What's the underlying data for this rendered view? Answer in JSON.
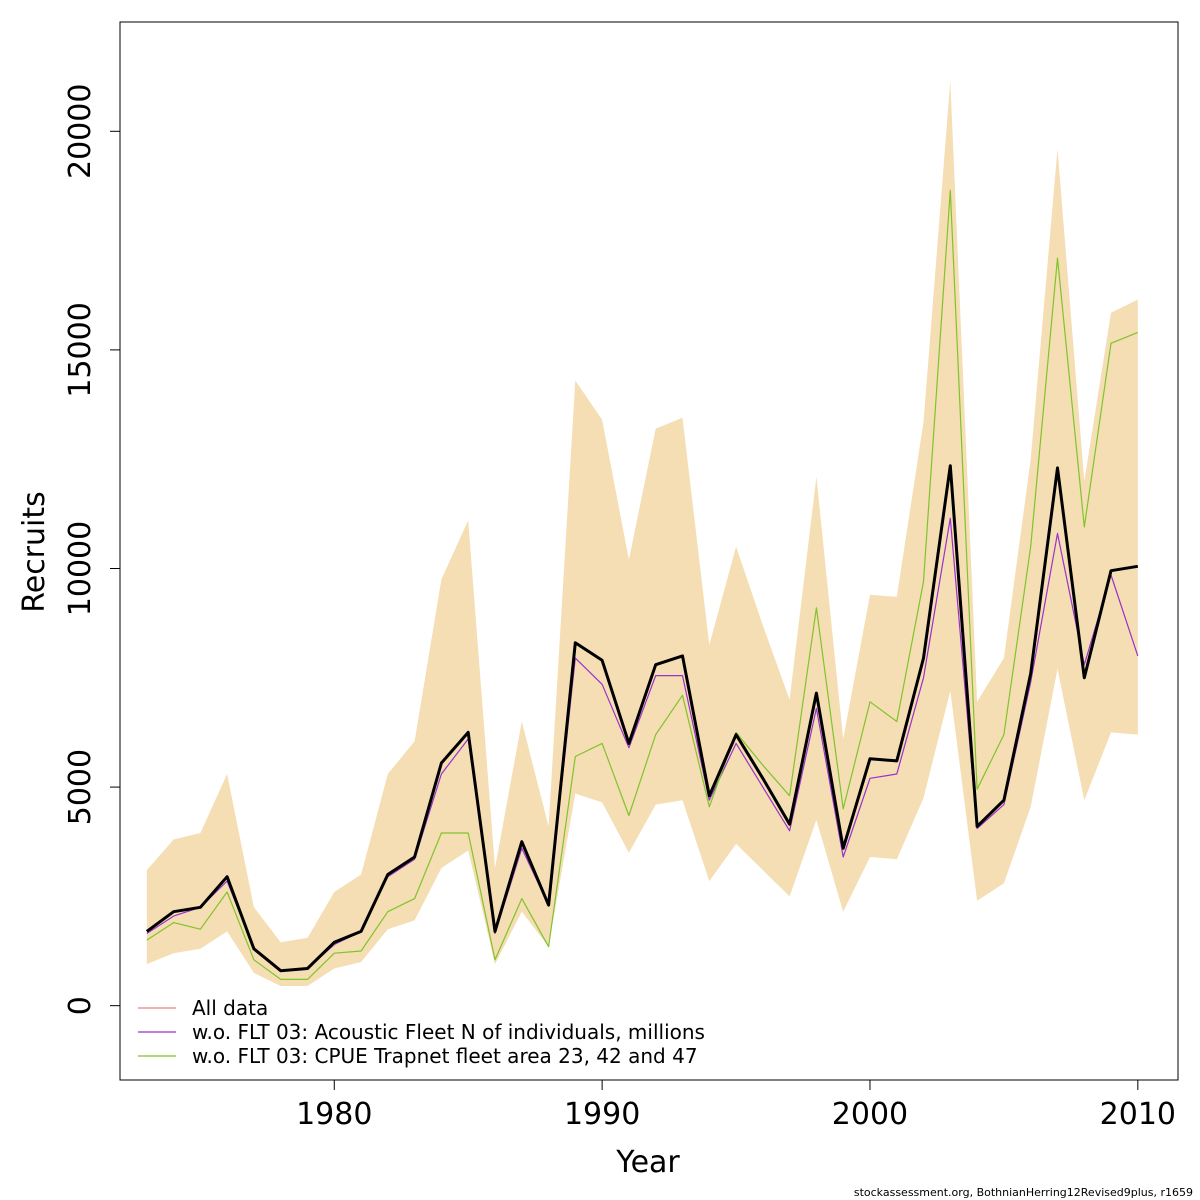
{
  "chart_data": {
    "type": "line",
    "xlabel": "Year",
    "ylabel": "Recruits",
    "xlim": [
      1972,
      2011.5
    ],
    "ylim": [
      -1700,
      22500
    ],
    "x_ticks": [
      1980,
      1990,
      2000,
      2010
    ],
    "y_ticks": [
      0,
      5000,
      10000,
      15000,
      20000
    ],
    "grid": false,
    "legend_position": "bottom-left",
    "x": [
      1973,
      1974,
      1975,
      1976,
      1977,
      1978,
      1979,
      1980,
      1981,
      1982,
      1983,
      1984,
      1985,
      1986,
      1987,
      1988,
      1989,
      1990,
      1991,
      1992,
      1993,
      1994,
      1995,
      1996,
      1997,
      1998,
      1999,
      2000,
      2001,
      2002,
      2003,
      2004,
      2005,
      2006,
      2007,
      2008,
      2009,
      2010
    ],
    "band": {
      "color": "#F5DEB3",
      "upper": [
        3100,
        3800,
        3950,
        5300,
        2250,
        1450,
        1550,
        2600,
        3000,
        5300,
        6050,
        9750,
        11100,
        3150,
        6500,
        4100,
        14300,
        13400,
        10200,
        13200,
        13450,
        8250,
        10500,
        8700,
        7000,
        12100,
        6100,
        9400,
        9350,
        13350,
        21150,
        6950,
        7950,
        12500,
        19600,
        12000,
        15850,
        16150
      ],
      "lower": [
        950,
        1200,
        1300,
        1700,
        750,
        450,
        450,
        850,
        1000,
        1750,
        1950,
        3150,
        3550,
        950,
        2150,
        1350,
        4850,
        4650,
        3500,
        4600,
        4700,
        2850,
        3700,
        3100,
        2500,
        4250,
        2150,
        3400,
        3350,
        4750,
        7200,
        2400,
        2800,
        4550,
        7700,
        4700,
        6250,
        6200
      ]
    },
    "series": [
      {
        "name": "All data",
        "color": "#E8837C",
        "width": 1.2,
        "legend": true,
        "values": [
          1700,
          2150,
          2250,
          2950,
          1300,
          800,
          850,
          1450,
          1700,
          3000,
          3400,
          5550,
          6250,
          1700,
          3750,
          2300,
          8300,
          7900,
          6000,
          7800,
          8000,
          4800,
          6200,
          5200,
          4150,
          7150,
          3600,
          5650,
          5600,
          7950,
          12350,
          4100,
          4700,
          7600,
          12300,
          7500,
          9950,
          10050
        ]
      },
      {
        "name": "w.o. FLT 03: Acoustic Fleet  N of individuals, millions",
        "color": "#9932CC",
        "width": 1.2,
        "legend": true,
        "values": [
          1650,
          2050,
          2250,
          2850,
          1300,
          800,
          850,
          1400,
          1700,
          2950,
          3350,
          5300,
          6100,
          1650,
          3600,
          2300,
          7950,
          7350,
          5900,
          7550,
          7550,
          4700,
          6000,
          5000,
          4000,
          6800,
          3400,
          5200,
          5300,
          7500,
          11150,
          4050,
          4600,
          7400,
          10800,
          7800,
          9850,
          8000
        ]
      },
      {
        "name": "w.o. FLT 03: CPUE Trapnet fleet area 23, 42 and 47",
        "color": "#7FC42B",
        "width": 1.2,
        "legend": true,
        "values": [
          1500,
          1900,
          1750,
          2600,
          1050,
          600,
          600,
          1200,
          1250,
          2150,
          2450,
          3950,
          3950,
          1050,
          2450,
          1350,
          5700,
          6000,
          4350,
          6200,
          7100,
          4550,
          6250,
          5500,
          4800,
          9100,
          4500,
          6950,
          6500,
          9700,
          18650,
          4950,
          6200,
          10500,
          17100,
          10950,
          15150,
          15400
        ]
      },
      {
        "name": "",
        "color": "#000000",
        "width": 3,
        "legend": false,
        "values": [
          1700,
          2150,
          2250,
          2950,
          1300,
          800,
          850,
          1450,
          1700,
          3000,
          3400,
          5550,
          6250,
          1700,
          3750,
          2300,
          8300,
          7900,
          6000,
          7800,
          8000,
          4800,
          6200,
          5200,
          4150,
          7150,
          3600,
          5650,
          5600,
          7950,
          12350,
          4100,
          4700,
          7600,
          12300,
          7500,
          9950,
          10050
        ]
      }
    ]
  },
  "credit": "stockassessment.org, BothnianHerring12Revised9plus, r1659"
}
